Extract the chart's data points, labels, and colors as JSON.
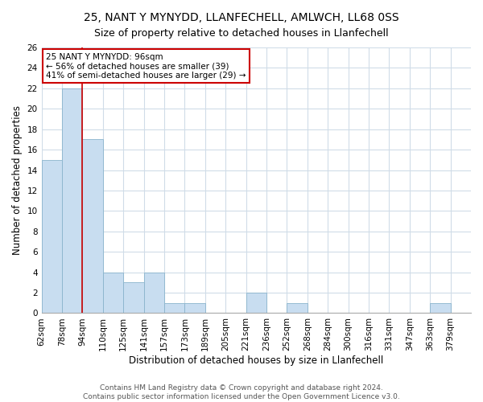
{
  "title1": "25, NANT Y MYNYDD, LLANFECHELL, AMLWCH, LL68 0SS",
  "title2": "Size of property relative to detached houses in Llanfechell",
  "xlabel": "Distribution of detached houses by size in Llanfechell",
  "ylabel": "Number of detached properties",
  "bin_labels": [
    "62sqm",
    "78sqm",
    "94sqm",
    "110sqm",
    "125sqm",
    "141sqm",
    "157sqm",
    "173sqm",
    "189sqm",
    "205sqm",
    "221sqm",
    "236sqm",
    "252sqm",
    "268sqm",
    "284sqm",
    "300sqm",
    "316sqm",
    "331sqm",
    "347sqm",
    "363sqm",
    "379sqm"
  ],
  "bar_heights": [
    15,
    22,
    17,
    4,
    3,
    4,
    1,
    1,
    0,
    0,
    2,
    0,
    1,
    0,
    0,
    0,
    0,
    0,
    0,
    1,
    0
  ],
  "bar_color": "#c8ddf0",
  "bar_edge_color": "#8ab4cc",
  "vline_color": "#cc0000",
  "vline_x_index": 2,
  "annotation_title": "25 NANT Y MYNYDD: 96sqm",
  "annotation_line1": "← 56% of detached houses are smaller (39)",
  "annotation_line2": "41% of semi-detached houses are larger (29) →",
  "annotation_box_color": "#ffffff",
  "annotation_box_edge": "#cc0000",
  "ylim": [
    0,
    26
  ],
  "yticks": [
    0,
    2,
    4,
    6,
    8,
    10,
    12,
    14,
    16,
    18,
    20,
    22,
    24,
    26
  ],
  "footer1": "Contains HM Land Registry data © Crown copyright and database right 2024.",
  "footer2": "Contains public sector information licensed under the Open Government Licence v3.0.",
  "background_color": "#ffffff",
  "grid_color": "#d0dce8",
  "title_fontsize": 10,
  "subtitle_fontsize": 9,
  "axis_label_fontsize": 8.5,
  "tick_fontsize": 7.5,
  "footer_fontsize": 6.5
}
